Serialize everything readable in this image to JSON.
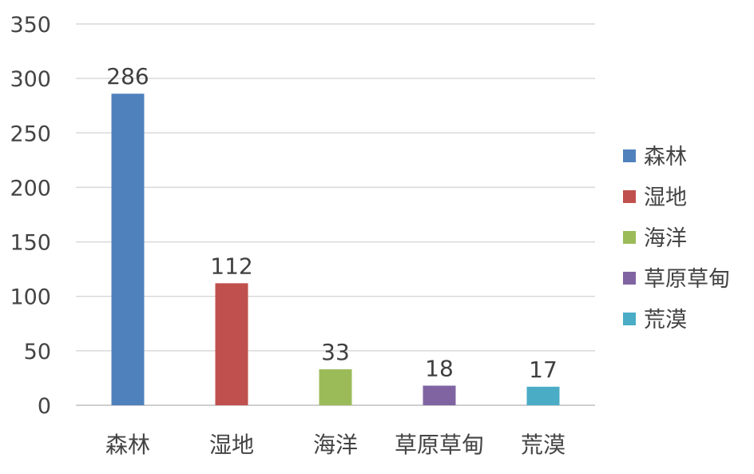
{
  "chart_data": {
    "type": "bar",
    "title": "",
    "xlabel": "",
    "ylabel": "",
    "categories": [
      "森林",
      "湿地",
      "海洋",
      "草原草甸",
      "荒漠"
    ],
    "values": [
      286,
      112,
      33,
      18,
      17
    ],
    "data_labels": [
      "286",
      "112",
      "33",
      "18",
      "17"
    ],
    "colors": [
      "#4f81bd",
      "#c0504d",
      "#9bbb59",
      "#8064a2",
      "#4bacc6"
    ],
    "ylim": [
      0,
      350
    ],
    "yticks": [
      0,
      50,
      100,
      150,
      200,
      250,
      300,
      350
    ],
    "ytick_labels": [
      "0",
      "50",
      "100",
      "150",
      "200",
      "250",
      "300",
      "350"
    ],
    "grid": true,
    "legend": {
      "position": "right",
      "entries": [
        "森林",
        "湿地",
        "海洋",
        "草原草甸",
        "荒漠"
      ]
    }
  }
}
